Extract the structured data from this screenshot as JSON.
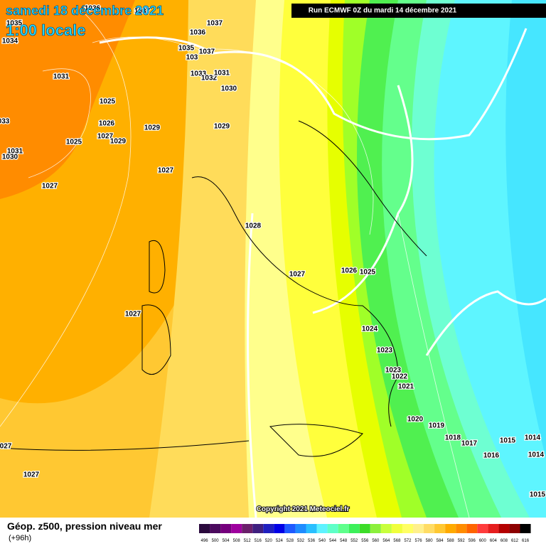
{
  "header": {
    "date": "samedi 18 décembre 2021",
    "time": "1:00 locale",
    "run": "Run ECMWF 0Z du mardi 14 décembre 2021"
  },
  "pressure_labels": [
    "1036",
    "1037",
    "1035",
    "1034",
    "1036",
    "1037",
    "1035",
    "1037",
    "103",
    "1033",
    "1032",
    "1031",
    "1031",
    "1030",
    "1025",
    "033",
    "1026",
    "1029",
    "1029",
    "1027",
    "1029",
    "1025",
    "1031",
    "1030",
    "1027",
    "1027",
    "1028",
    "1027",
    "1026",
    "1025",
    "1027",
    "1024",
    "1023",
    "1023",
    "1022",
    "1021",
    "1020",
    "1019",
    "1018",
    "1017",
    "1016",
    "1015",
    "1014",
    "1014",
    "027",
    "1027",
    "1015"
  ],
  "footer": {
    "copyright": "Copyright 2021 Meteociel.fr",
    "title": "Géop. z500, pression niveau mer",
    "lead": "(+96h)"
  },
  "scale": {
    "labels": [
      496,
      500,
      504,
      508,
      512,
      516,
      520,
      524,
      528,
      532,
      536,
      540,
      544,
      548,
      552,
      556,
      560,
      564,
      568,
      572,
      576,
      580,
      584,
      588,
      592,
      596,
      600,
      604,
      608,
      612,
      616
    ],
    "colors": [
      "#2b0a3d",
      "#4b0a5e",
      "#75007d",
      "#9e009e",
      "#6b1f6b",
      "#3f1f7f",
      "#1f1fbf",
      "#0000e6",
      "#1e5aff",
      "#1e8cff",
      "#29bfff",
      "#5ef2ff",
      "#5effc8",
      "#5eff8c",
      "#3cf05a",
      "#3cdc28",
      "#8cf03c",
      "#c8ff3c",
      "#f0ff3c",
      "#ffff64",
      "#fff08c",
      "#ffdc64",
      "#ffc832",
      "#ffaa00",
      "#ff8c00",
      "#ff6400",
      "#ff3c3c",
      "#e61e1e",
      "#b40000",
      "#8c0000",
      "#000000"
    ]
  }
}
